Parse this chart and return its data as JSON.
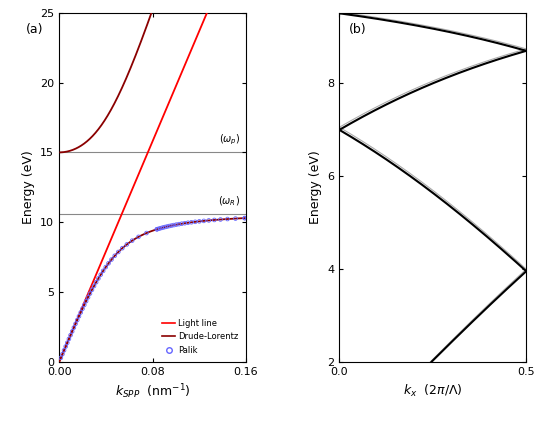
{
  "panel_a": {
    "xlabel": "k$_{SPP}$ (nm$^{-1}$)",
    "ylabel": "Energy (eV)",
    "xlim": [
      0.0,
      0.16
    ],
    "ylim": [
      0,
      25
    ],
    "yticks": [
      0,
      5,
      10,
      15,
      20,
      25
    ],
    "xticks": [
      0.0,
      0.08,
      0.16
    ],
    "omega_p": 15.0,
    "omega_R": 10.6,
    "Al_wp_eV": 15.0,
    "Al_wR_eV": 10.6,
    "light_line_color": "#ff0000",
    "drude_color": "#8b0000",
    "palik_color": "#6666ff",
    "hline_color": "#888888"
  },
  "panel_b": {
    "xlabel": "k$_x$ (2π/Λ)",
    "ylabel": "Energy (eV)",
    "xlim": [
      0.0,
      0.5
    ],
    "ylim": [
      2,
      9.5
    ],
    "yticks": [
      2,
      4,
      6,
      8
    ],
    "xticks": [
      0.0,
      0.5
    ],
    "band_color": "#000000",
    "band2_color": "#aaaaaa",
    "E_unit": 3.95,
    "wp_eV": 15.0,
    "wR_eV": 10.6
  }
}
